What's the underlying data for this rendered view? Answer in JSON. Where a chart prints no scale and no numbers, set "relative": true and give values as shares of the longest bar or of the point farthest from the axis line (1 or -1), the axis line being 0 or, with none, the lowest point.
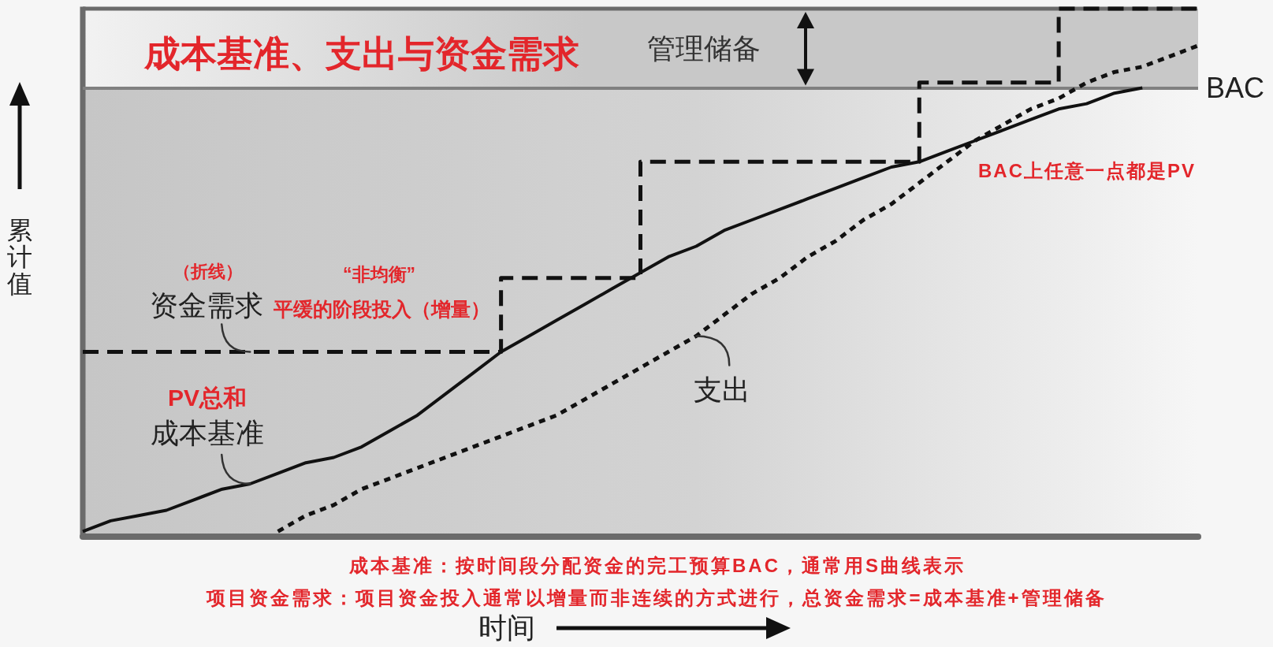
{
  "chart_data": {
    "type": "line",
    "title": "成本基准、支出与资金需求",
    "xlabel": "时间",
    "ylabel": "累计值",
    "relative": true,
    "marker": "none",
    "categories": [
      null,
      null,
      null,
      null,
      null,
      null,
      null,
      null,
      null,
      null,
      null,
      null,
      null,
      null,
      null,
      null,
      null,
      null,
      null,
      null,
      null,
      null,
      null,
      null,
      null,
      null,
      null,
      null,
      null,
      null,
      null,
      null,
      null,
      null,
      null,
      null,
      null,
      null,
      null,
      null,
      null
    ],
    "series": [
      {
        "name": "资金需求",
        "type": "step",
        "line_style": "dashed",
        "color": "#111111",
        "values": [
          0.35,
          0.35,
          0.35,
          0.35,
          0.35,
          0.35,
          0.35,
          0.35,
          0.35,
          0.35,
          0.35,
          0.35,
          0.35,
          0.35,
          0.35,
          0.49,
          0.49,
          0.49,
          0.49,
          0.49,
          0.71,
          0.71,
          0.71,
          0.71,
          0.71,
          0.71,
          0.71,
          0.71,
          0.71,
          0.71,
          0.86,
          0.86,
          0.86,
          0.86,
          0.86,
          1,
          1,
          1,
          1,
          1,
          1
        ]
      },
      {
        "name": "成本基准",
        "line_style": "solid",
        "color": "#111111",
        "values": [
          0.01,
          0.03,
          0.04,
          0.05,
          0.07,
          0.09,
          0.1,
          0.12,
          0.14,
          0.15,
          0.17,
          0.2,
          0.23,
          0.27,
          0.31,
          0.35,
          0.38,
          0.41,
          0.44,
          0.47,
          0.5,
          0.53,
          0.55,
          0.58,
          0.6,
          0.62,
          0.64,
          0.66,
          0.68,
          0.7,
          0.71,
          0.73,
          0.75,
          0.77,
          0.79,
          0.81,
          0.82,
          0.84,
          0.85,
          null,
          null
        ]
      },
      {
        "name": "支出",
        "line_style": "dotted",
        "color": "#111111",
        "values": [
          null,
          null,
          null,
          null,
          null,
          null,
          null,
          0.01,
          0.04,
          0.06,
          0.09,
          0.11,
          0.13,
          0.15,
          0.17,
          0.19,
          0.21,
          0.23,
          0.26,
          0.29,
          0.32,
          0.35,
          0.38,
          0.42,
          0.46,
          0.49,
          0.53,
          0.56,
          0.6,
          0.63,
          0.67,
          0.71,
          0.75,
          0.78,
          0.81,
          0.83,
          0.86,
          0.88,
          0.89,
          0.91,
          0.93
        ]
      }
    ],
    "ref_lines": [
      {
        "axis": "y",
        "value": 0.85,
        "label": "BAC",
        "color": "#808080",
        "line_style": "solid"
      }
    ],
    "bands": [
      {
        "axis": "y",
        "from": 0.85,
        "to": 1,
        "label": "管理储备",
        "color": "#c8c8c8"
      }
    ],
    "annotations": [
      "（折线）",
      "“非均衡”",
      "平缓的阶段投入（增量）",
      "PV总和",
      "BAC上任意一点都是PV",
      "成本基准：按时间段分配资金的完工预算BAC，通常用S曲线表示",
      "项目资金需求：项目资金投入通常以增量而非连续的方式进行，总资金需求=成本基准+管理储备"
    ]
  }
}
